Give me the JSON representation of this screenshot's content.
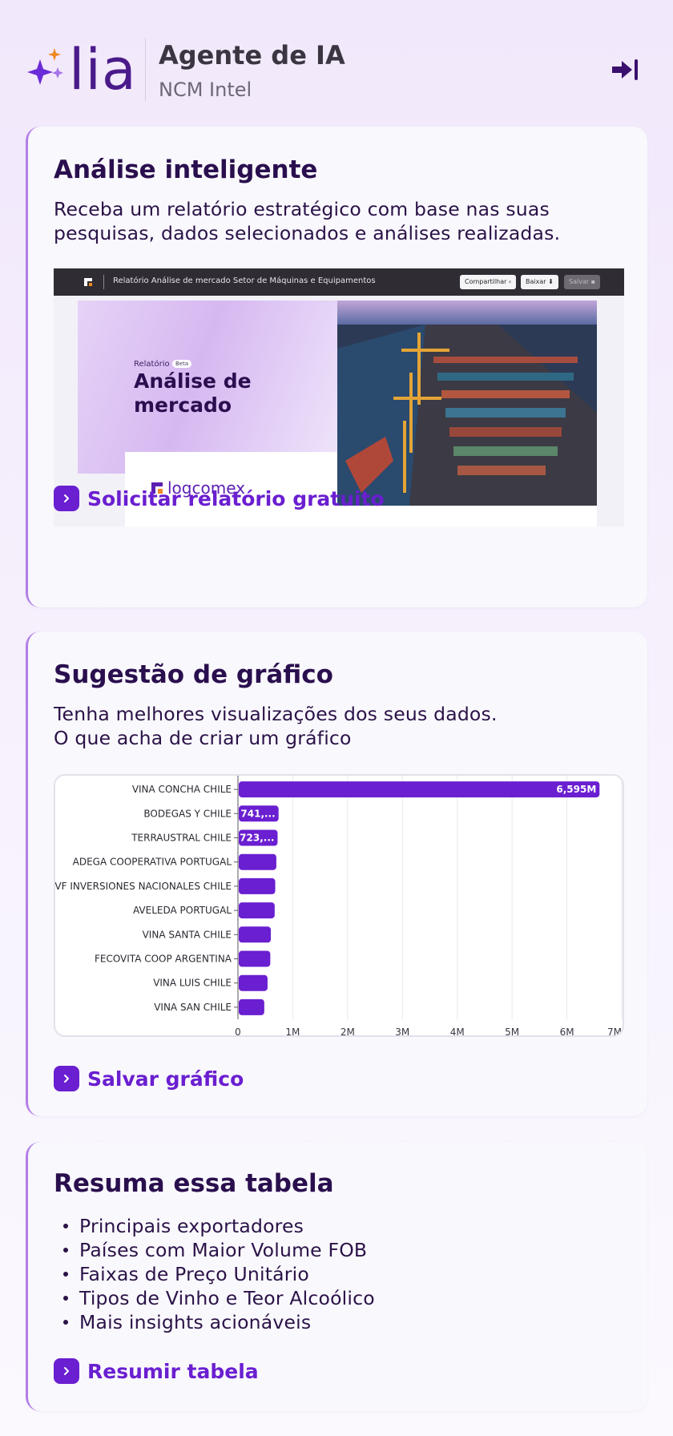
{
  "header": {
    "logo_text": "lia",
    "title": "Agente de IA",
    "subtitle": "NCM Intel"
  },
  "cards": {
    "analysis": {
      "title": "Análise inteligente",
      "description": "Receba um relatório estratégico com base nas suas pesquisas, dados selecionados e análises realizadas.",
      "link": "Solicitar relatório gratuito",
      "preview": {
        "bar_title": "Relatório Análise de mercado Setor de Máquinas e Equipamentos",
        "share_label": "Compartilhar",
        "download_label": "Baixar",
        "save_label": "Salvar",
        "report_label": "Relatório",
        "beta_label": "Beta",
        "heading_line1": "Análise de",
        "heading_line2": "mercado",
        "brand": "logcomex"
      }
    },
    "chart": {
      "title": "Sugestão de gráfico",
      "description_line1": "Tenha melhores visualizações dos seus dados.",
      "description_line2": "O que acha de criar um gráfico",
      "link": "Salvar gráfico"
    },
    "summary": {
      "title": "Resuma essa tabela",
      "items": [
        "Principais exportadores",
        "Países com Maior Volume FOB",
        "Faixas de Preço Unitário",
        "Tipos de Vinho e Teor Alcoólico",
        "Mais insights acionáveis"
      ],
      "link": "Resumir tabela"
    }
  },
  "colors": {
    "accent": "#6a1fd0",
    "bar": "#6a1fd0",
    "title": "#2a0f4e"
  },
  "chart_data": {
    "type": "bar",
    "orientation": "horizontal",
    "categories": [
      "VINA CONCHA CHILE",
      "BODEGAS Y CHILE",
      "TERRAUSTRAL CHILE",
      "ADEGA COOPERATIVA PORTUGAL",
      "VF INVERSIONES NACIONALES CHILE",
      "AVELEDA PORTUGAL",
      "VINA SANTA CHILE",
      "FECOVITA COOP ARGENTINA",
      "VINA LUIS CHILE",
      "VINA SAN CHILE"
    ],
    "values": [
      6595000,
      741000,
      723000,
      700000,
      680000,
      670000,
      600000,
      590000,
      540000,
      480000
    ],
    "data_labels": [
      "6,595M",
      "741,...",
      "723,...",
      "",
      "",
      "",
      "",
      "",
      "",
      ""
    ],
    "xticks": [
      "0",
      "1M",
      "2M",
      "3M",
      "4M",
      "5M",
      "6M",
      "7M"
    ],
    "xlim": [
      0,
      7000000
    ],
    "grid": "vertical"
  }
}
